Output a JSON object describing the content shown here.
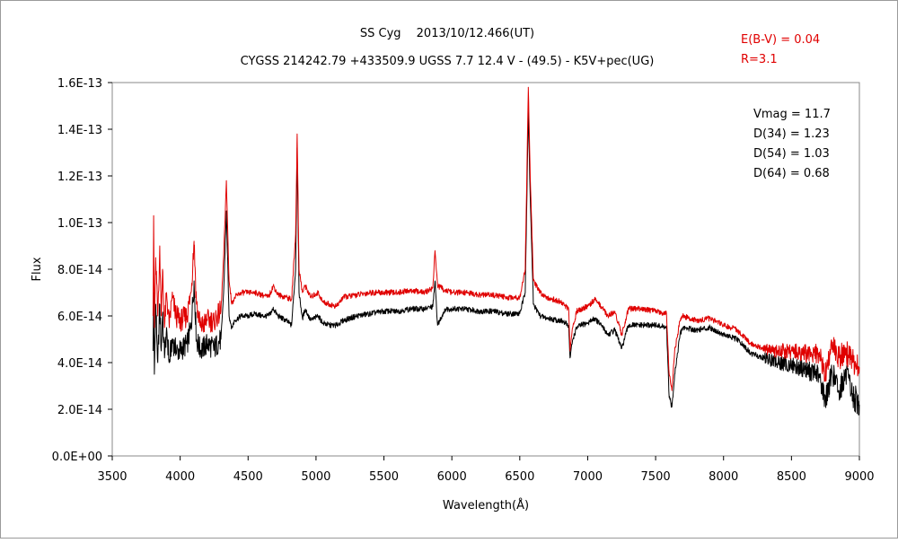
{
  "chart_data": {
    "type": "line",
    "title": "SS Cyg　 2013/10/12.466(UT)",
    "subtitle": "CYGSS 214242.79 +433509.9 UGSS 7.7 12.4 V - (49.5) - K5V+pec(UG)",
    "xlabel": "Wavelength(Å)",
    "ylabel": "Flux",
    "xlim": [
      3500,
      9000
    ],
    "ylim": [
      0,
      1.6e-13
    ],
    "x_ticks": [
      "3500",
      "4000",
      "4500",
      "5000",
      "5500",
      "6000",
      "6500",
      "7000",
      "7500",
      "8000",
      "8500",
      "9000"
    ],
    "y_ticks": [
      "0.0E+00",
      "2.0E-14",
      "4.0E-14",
      "6.0E-14",
      "8.0E-14",
      "1.0E-13",
      "1.2E-13",
      "1.4E-13",
      "1.6E-13"
    ],
    "grid": false,
    "correction_text": [
      "E(B-V) = 0.04",
      "R=3.1"
    ],
    "stats_text": [
      "Vmag = 11.7",
      "D(34) = 1.23",
      "D(54) = 1.03",
      "D(64) = 0.68"
    ],
    "series": [
      {
        "color": "#e00000",
        "x": [
          3800,
          3805,
          3810,
          3820,
          3835,
          3850,
          3860,
          3870,
          3885,
          3900,
          3920,
          3940,
          3970,
          4000,
          4050,
          4080,
          4102,
          4120,
          4150,
          4200,
          4250,
          4300,
          4320,
          4340,
          4360,
          4380,
          4400,
          4450,
          4500,
          4550,
          4600,
          4650,
          4686,
          4720,
          4780,
          4820,
          4850,
          4861,
          4875,
          4900,
          4921,
          4960,
          5015,
          5050,
          5100,
          5150,
          5200,
          5300,
          5400,
          5500,
          5600,
          5700,
          5800,
          5860,
          5876,
          5895,
          5950,
          6000,
          6100,
          6200,
          6300,
          6400,
          6500,
          6540,
          6563,
          6575,
          6600,
          6650,
          6700,
          6800,
          6860,
          6870,
          6890,
          6920,
          6950,
          7000,
          7050,
          7100,
          7150,
          7200,
          7250,
          7300,
          7400,
          7500,
          7580,
          7600,
          7620,
          7640,
          7680,
          7700,
          7800,
          7900,
          8000,
          8100,
          8200,
          8300,
          8400,
          8500,
          8600,
          8700,
          8750,
          8800,
          8850,
          8900,
          8950,
          9000
        ],
        "y": [
          6e-14,
          1.03e-13,
          5.5e-14,
          8.5e-14,
          6e-14,
          9e-14,
          6e-14,
          8e-14,
          5.5e-14,
          7e-14,
          5.5e-14,
          6.8e-14,
          6e-14,
          5.8e-14,
          6e-14,
          7e-14,
          9.2e-14,
          6.5e-14,
          5.5e-14,
          5.8e-14,
          5.8e-14,
          6.2e-14,
          8.5e-14,
          1.18e-13,
          7.5e-14,
          6.5e-14,
          6.8e-14,
          7e-14,
          7e-14,
          7e-14,
          6.9e-14,
          6.8e-14,
          7.3e-14,
          6.9e-14,
          6.8e-14,
          6.7e-14,
          9.5e-14,
          1.38e-13,
          8e-14,
          7e-14,
          7.3e-14,
          6.8e-14,
          7e-14,
          6.6e-14,
          6.5e-14,
          6.4e-14,
          6.8e-14,
          6.9e-14,
          7e-14,
          7e-14,
          7e-14,
          7.1e-14,
          7e-14,
          7.2e-14,
          8.8e-14,
          7.3e-14,
          7.1e-14,
          7e-14,
          7e-14,
          6.9e-14,
          6.9e-14,
          6.8e-14,
          6.8e-14,
          8e-14,
          1.58e-13,
          1.25e-13,
          7.5e-14,
          7e-14,
          6.8e-14,
          6.6e-14,
          6.3e-14,
          4.5e-14,
          5.5e-14,
          6.2e-14,
          6.3e-14,
          6.4e-14,
          6.7e-14,
          6.4e-14,
          6e-14,
          6.2e-14,
          5.2e-14,
          6.3e-14,
          6.3e-14,
          6.2e-14,
          6.1e-14,
          3.5e-14,
          2.8e-14,
          4.5e-14,
          5.8e-14,
          6e-14,
          5.8e-14,
          5.9e-14,
          5.6e-14,
          5.4e-14,
          4.8e-14,
          4.6e-14,
          4.5e-14,
          4.5e-14,
          4.4e-14,
          4.4e-14,
          3.5e-14,
          4.8e-14,
          4.2e-14,
          4.5e-14,
          4e-14,
          3.8e-14
        ]
      },
      {
        "color": "#000000",
        "x": [
          3800,
          3805,
          3810,
          3820,
          3835,
          3850,
          3860,
          3870,
          3885,
          3900,
          3920,
          3940,
          3970,
          4000,
          4050,
          4080,
          4102,
          4120,
          4150,
          4200,
          4250,
          4300,
          4320,
          4340,
          4360,
          4380,
          4400,
          4450,
          4500,
          4550,
          4600,
          4650,
          4686,
          4720,
          4780,
          4820,
          4850,
          4861,
          4875,
          4900,
          4921,
          4960,
          5015,
          5050,
          5100,
          5150,
          5200,
          5300,
          5400,
          5500,
          5600,
          5700,
          5800,
          5860,
          5876,
          5895,
          5950,
          6000,
          6100,
          6200,
          6300,
          6400,
          6500,
          6540,
          6563,
          6575,
          6600,
          6650,
          6700,
          6800,
          6860,
          6870,
          6890,
          6920,
          6950,
          7000,
          7050,
          7100,
          7150,
          7200,
          7250,
          7300,
          7400,
          7500,
          7580,
          7600,
          7620,
          7640,
          7680,
          7700,
          7800,
          7900,
          8000,
          8100,
          8200,
          8300,
          8400,
          8500,
          8600,
          8700,
          8750,
          8800,
          8850,
          8900,
          8950,
          9000
        ],
        "y": [
          4.5e-14,
          7e-14,
          3.5e-14,
          6.5e-14,
          4e-14,
          6.5e-14,
          4.5e-14,
          6e-14,
          4.2e-14,
          5.5e-14,
          4e-14,
          5e-14,
          4.5e-14,
          4.5e-14,
          4.8e-14,
          5.5e-14,
          7.5e-14,
          5e-14,
          4.5e-14,
          4.8e-14,
          4.6e-14,
          5e-14,
          7e-14,
          1.05e-13,
          6e-14,
          5.5e-14,
          5.8e-14,
          6e-14,
          6e-14,
          6.1e-14,
          6e-14,
          6e-14,
          6.3e-14,
          6e-14,
          5.8e-14,
          5.6e-14,
          8e-14,
          1.32e-13,
          7e-14,
          5.9e-14,
          6.3e-14,
          5.8e-14,
          6e-14,
          5.7e-14,
          5.6e-14,
          5.6e-14,
          5.8e-14,
          6e-14,
          6.1e-14,
          6.2e-14,
          6.2e-14,
          6.3e-14,
          6.3e-14,
          6.4e-14,
          7.5e-14,
          5.6e-14,
          6.3e-14,
          6.3e-14,
          6.3e-14,
          6.2e-14,
          6.2e-14,
          6.1e-14,
          6.1e-14,
          7e-14,
          1.48e-13,
          1.15e-13,
          6.5e-14,
          6e-14,
          5.9e-14,
          5.8e-14,
          5.6e-14,
          4.2e-14,
          5e-14,
          5.5e-14,
          5.6e-14,
          5.7e-14,
          5.9e-14,
          5.6e-14,
          5.2e-14,
          5.4e-14,
          4.6e-14,
          5.6e-14,
          5.6e-14,
          5.6e-14,
          5.5e-14,
          2.5e-14,
          2.1e-14,
          3.5e-14,
          5.2e-14,
          5.5e-14,
          5.4e-14,
          5.5e-14,
          5.2e-14,
          5e-14,
          4.4e-14,
          4.2e-14,
          4e-14,
          3.9e-14,
          3.7e-14,
          3.5e-14,
          2.4e-14,
          3.6e-14,
          2.8e-14,
          3.5e-14,
          2.6e-14,
          2.2e-14
        ]
      }
    ]
  }
}
